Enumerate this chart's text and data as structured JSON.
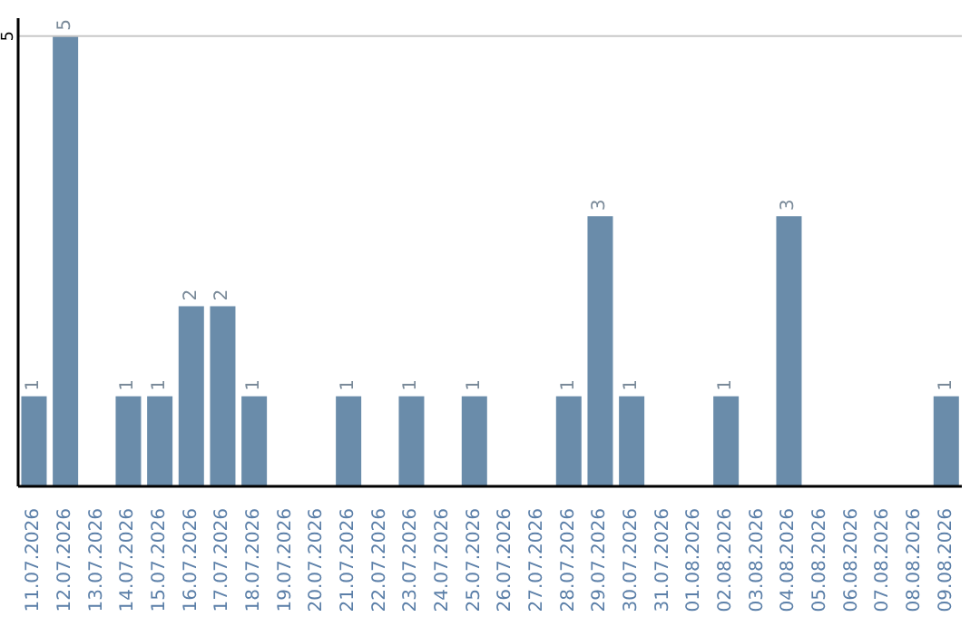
{
  "chart_data": {
    "type": "bar",
    "categories": [
      "11.07.2026",
      "12.07.2026",
      "13.07.2026",
      "14.07.2026",
      "15.07.2026",
      "16.07.2026",
      "17.07.2026",
      "18.07.2026",
      "19.07.2026",
      "20.07.2026",
      "21.07.2026",
      "22.07.2026",
      "23.07.2026",
      "24.07.2026",
      "25.07.2026",
      "26.07.2026",
      "27.07.2026",
      "28.07.2026",
      "29.07.2026",
      "30.07.2026",
      "31.07.2026",
      "01.08.2026",
      "02.08.2026",
      "03.08.2026",
      "04.08.2026",
      "05.08.2026",
      "06.08.2026",
      "07.08.2026",
      "08.08.2026",
      "09.08.2026"
    ],
    "values": [
      1,
      5,
      0,
      1,
      1,
      2,
      2,
      1,
      0,
      0,
      1,
      0,
      1,
      0,
      1,
      0,
      0,
      1,
      3,
      1,
      0,
      0,
      1,
      0,
      3,
      0,
      0,
      0,
      0,
      1
    ],
    "value_labels": [
      "1",
      "5",
      null,
      "1",
      "1",
      "2",
      "2",
      "1",
      null,
      null,
      "1",
      null,
      "1",
      null,
      "1",
      null,
      null,
      "1",
      "3",
      "1",
      null,
      null,
      "1",
      null,
      "3",
      null,
      null,
      null,
      null,
      "1"
    ],
    "color": "#6a8caa",
    "ylim": [
      0,
      5.2
    ],
    "yticks": [
      5
    ],
    "grid": "y"
  }
}
